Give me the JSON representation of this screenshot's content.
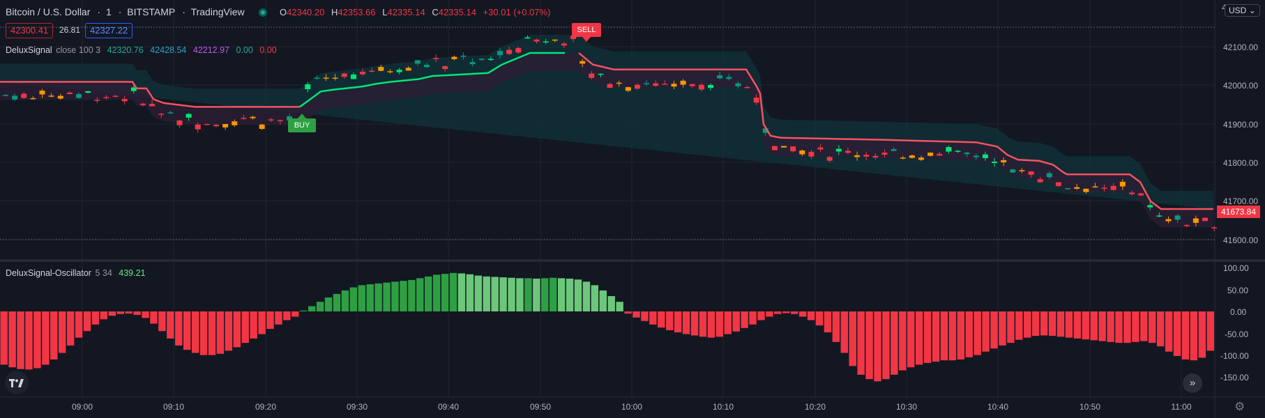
{
  "header": {
    "symbol_title": "Bitcoin / U.S. Dollar",
    "interval": "1",
    "exchange": "BITSTAMP",
    "source": "TradingView",
    "ohlc": [
      {
        "label": "O",
        "value": "42340.20"
      },
      {
        "label": "H",
        "value": "42353.66"
      },
      {
        "label": "L",
        "value": "42335.14"
      },
      {
        "label": "C",
        "value": "42335.14"
      }
    ],
    "change": "+30.01 (+0.07%)",
    "bid": "42300.41",
    "spread": "26.81",
    "ask": "42327.22"
  },
  "indicator_main": {
    "name": "DeluxSignal",
    "params": "close 100 3",
    "values": [
      {
        "value": "42320.76",
        "color": "#22ab94"
      },
      {
        "value": "42428.54",
        "color": "#2aa4c6"
      },
      {
        "value": "42212.97",
        "color": "#c355e6"
      },
      {
        "value": "0.00",
        "color": "#22ab94"
      },
      {
        "value": "0.00",
        "color": "#f23645"
      }
    ]
  },
  "indicator_osc": {
    "name": "DeluxSignal-Oscillator",
    "params": "5 34",
    "value": "439.21",
    "value_color": "#6ce589"
  },
  "signals": {
    "buy": "BUY",
    "sell": "SELL"
  },
  "price_axis": {
    "currency": "USD",
    "top_partial": "4",
    "ticks": [
      "42100.00",
      "42000.00",
      "41900.00",
      "41800.00",
      "41700.00",
      "41600.00"
    ],
    "last_price": "41673.84"
  },
  "osc_axis": {
    "ticks": [
      "100.00",
      "50.00",
      "0.00",
      "-50.00",
      "-100.00",
      "-150.00"
    ]
  },
  "time_axis": {
    "labels": [
      {
        "text": "09:00",
        "bold": true
      },
      {
        "text": "09:10",
        "bold": false
      },
      {
        "text": "09:20",
        "bold": false
      },
      {
        "text": "09:30",
        "bold": false
      },
      {
        "text": "09:40",
        "bold": false
      },
      {
        "text": "09:50",
        "bold": false
      },
      {
        "text": "10:00",
        "bold": true
      },
      {
        "text": "10:10",
        "bold": false
      },
      {
        "text": "10:20",
        "bold": false
      },
      {
        "text": "10:30",
        "bold": false
      },
      {
        "text": "10:40",
        "bold": false
      },
      {
        "text": "10:50",
        "bold": false
      },
      {
        "text": "11:00",
        "bold": true
      }
    ]
  },
  "colors": {
    "background": "#131722",
    "up": "#089981",
    "up_bright": "#00e676",
    "down": "#f23645",
    "orange": "#ff9800",
    "trail_up": "#00e676",
    "trail_down": "#f7525f",
    "osc_pos_dark": "#2ea043",
    "osc_pos_light": "#6cc77a",
    "osc_neg": "#f23645",
    "cloud_top": "#10333a",
    "cloud_bottom": "#2a1e33",
    "grid": "#1f2430"
  },
  "chart_data": {
    "type": "bar",
    "title": "DeluxSignal-Oscillator",
    "ylim": [
      -170,
      110
    ],
    "approx_values_sampled": [
      -122,
      -128,
      -132,
      -133,
      -130,
      -122,
      -110,
      -95,
      -78,
      -60,
      -45,
      -30,
      -18,
      -10,
      -6,
      -5,
      -8,
      -15,
      -28,
      -45,
      -62,
      -78,
      -88,
      -95,
      -100,
      -100,
      -97,
      -90,
      -82,
      -72,
      -62,
      -52,
      -40,
      -30,
      -20,
      -12,
      2,
      12,
      22,
      32,
      40,
      48,
      55,
      60,
      62,
      64,
      66,
      68,
      70,
      72,
      76,
      80,
      84,
      86,
      88,
      87,
      85,
      82,
      80,
      79,
      78,
      77,
      76,
      76,
      75,
      76,
      77,
      76,
      75,
      73,
      68,
      60,
      48,
      35,
      22,
      -5,
      -14,
      -22,
      -30,
      -37,
      -43,
      -48,
      -52,
      -55,
      -58,
      -60,
      -58,
      -52,
      -46,
      -38,
      -30,
      -20,
      -12,
      -6,
      -4,
      -6,
      -12,
      -20,
      -32,
      -48,
      -70,
      -95,
      -125,
      -145,
      -155,
      -160,
      -155,
      -145,
      -135,
      -128,
      -122,
      -118,
      -115,
      -112,
      -112,
      -110,
      -105,
      -100,
      -92,
      -85,
      -78,
      -72,
      -65,
      -60,
      -56,
      -55,
      -56,
      -58,
      -60,
      -62,
      -64,
      -66,
      -68,
      -70,
      -72,
      -72,
      -70,
      -68,
      -72,
      -80,
      -92,
      -102,
      -110,
      -112,
      -106,
      -90
    ]
  }
}
